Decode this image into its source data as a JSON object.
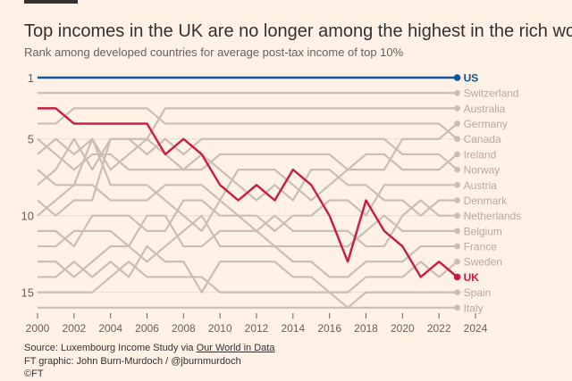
{
  "header": {
    "title": "Top incomes in the UK are no longer among the highest in the rich world",
    "subtitle": "Rank among developed countries for average post-tax income of top 10%"
  },
  "footer": {
    "source_prefix": "Source: Luxembourg Income Study via ",
    "source_link": "Our World in Data",
    "credit": "FT graphic: John Burn-Murdoch / @jburnmurdoch",
    "copyright": "©FT"
  },
  "chart_data": {
    "type": "line",
    "title": "Top incomes in the UK are no longer among the highest in the rich world",
    "subtitle": "Rank among developed countries for average post-tax income of top 10%",
    "x": [
      2000,
      2001,
      2002,
      2003,
      2004,
      2005,
      2006,
      2007,
      2008,
      2009,
      2010,
      2011,
      2012,
      2013,
      2014,
      2015,
      2016,
      2017,
      2018,
      2019,
      2020,
      2021,
      2022,
      2023
    ],
    "xlim": [
      2000,
      2024
    ],
    "xticks": [
      "2000",
      "2002",
      "2004",
      "2006",
      "2008",
      "2010",
      "2012",
      "2014",
      "2016",
      "2018",
      "2020",
      "2022",
      "2024"
    ],
    "ylim": [
      1,
      16
    ],
    "y_reversed": true,
    "yticks": [
      "1",
      "5",
      "10",
      "15"
    ],
    "grid": true,
    "colors": {
      "highlight_us": "#0f5499",
      "highlight_uk": "#cc1a3e",
      "other": "#c9beb3",
      "label_other": "#b5aa9f"
    },
    "series": [
      {
        "name": "US",
        "highlight": "us",
        "values": [
          1,
          1,
          1,
          1,
          1,
          1,
          1,
          1,
          1,
          1,
          1,
          1,
          1,
          1,
          1,
          1,
          1,
          1,
          1,
          1,
          1,
          1,
          1,
          1
        ]
      },
      {
        "name": "Switzerland",
        "values": [
          2,
          2,
          2,
          2,
          2,
          2,
          2,
          2,
          2,
          2,
          2,
          2,
          2,
          2,
          2,
          2,
          2,
          2,
          2,
          2,
          2,
          2,
          2,
          2
        ]
      },
      {
        "name": "Australia",
        "values": [
          6,
          5,
          6,
          5,
          7,
          6,
          5,
          3,
          3,
          3,
          3,
          3,
          3,
          3,
          3,
          3,
          3,
          3,
          3,
          3,
          3,
          3,
          3,
          3
        ]
      },
      {
        "name": "Germany",
        "values": [
          5,
          6,
          7,
          6,
          6,
          7,
          7,
          7,
          7,
          7,
          6,
          6,
          6,
          6,
          6,
          6,
          6,
          7,
          7,
          7,
          5,
          5,
          5,
          4
        ]
      },
      {
        "name": "Canada",
        "values": [
          4,
          4,
          3,
          3,
          3,
          3,
          3,
          4,
          4,
          4,
          4,
          4,
          4,
          4,
          4,
          4,
          4,
          4,
          4,
          4,
          4,
          4,
          4,
          5
        ]
      },
      {
        "name": "Ireland",
        "values": [
          10,
          9,
          8,
          5,
          8,
          8,
          8,
          9,
          10,
          11,
          9,
          7,
          7,
          7,
          8,
          9,
          8,
          7,
          6,
          6,
          7,
          7,
          7,
          6
        ]
      },
      {
        "name": "Norway",
        "values": [
          8,
          7,
          5,
          7,
          5,
          5,
          6,
          5,
          6,
          5,
          5,
          5,
          5,
          5,
          5,
          5,
          5,
          5,
          5,
          5,
          6,
          6,
          6,
          7
        ]
      },
      {
        "name": "Austria",
        "values": [
          7,
          8,
          8,
          8,
          9,
          9,
          9,
          8,
          8,
          8,
          9,
          10,
          10,
          11,
          10,
          10,
          9,
          9,
          10,
          8,
          8,
          8,
          8,
          8
        ]
      },
      {
        "name": "Denmark",
        "values": [
          9,
          10,
          9,
          9,
          5,
          5,
          5,
          6,
          7,
          6,
          7,
          8,
          9,
          8,
          9,
          7,
          7,
          8,
          8,
          9,
          9,
          10,
          9,
          9
        ]
      },
      {
        "name": "Netherlands",
        "values": [
          11,
          11,
          12,
          10,
          10,
          10,
          11,
          11,
          9,
          9,
          10,
          10,
          11,
          10,
          11,
          11,
          11,
          11,
          12,
          12,
          10,
          9,
          10,
          10
        ]
      },
      {
        "name": "Belgium",
        "values": [
          12,
          12,
          11,
          11,
          11,
          12,
          13,
          12,
          11,
          10,
          12,
          12,
          12,
          12,
          12,
          12,
          12,
          12,
          11,
          10,
          11,
          11,
          11,
          11
        ]
      },
      {
        "name": "France",
        "values": [
          13,
          13,
          14,
          13,
          12,
          12,
          10,
          10,
          12,
          12,
          11,
          11,
          11,
          12,
          13,
          13,
          14,
          14,
          13,
          13,
          13,
          12,
          12,
          12
        ]
      },
      {
        "name": "Sweden",
        "values": [
          14,
          14,
          13,
          14,
          13,
          14,
          12,
          13,
          13,
          15,
          13,
          13,
          13,
          13,
          14,
          14,
          15,
          15,
          14,
          14,
          14,
          13,
          14,
          13
        ]
      },
      {
        "name": "UK",
        "highlight": "uk",
        "values": [
          3,
          3,
          4,
          4,
          4,
          4,
          4,
          6,
          5,
          6,
          8,
          9,
          8,
          9,
          7,
          8,
          10,
          13,
          9,
          11,
          12,
          14,
          13,
          14
        ]
      },
      {
        "name": "Spain",
        "values": [
          15,
          15,
          15,
          15,
          14,
          13,
          14,
          14,
          14,
          14,
          15,
          15,
          15,
          15,
          15,
          15,
          15,
          16,
          15,
          15,
          15,
          15,
          15,
          15
        ]
      },
      {
        "name": "Italy",
        "values": [
          16,
          16,
          16,
          16,
          16,
          16,
          16,
          16,
          16,
          16,
          16,
          16,
          16,
          16,
          16,
          16,
          16,
          16,
          16,
          16,
          16,
          16,
          16,
          16
        ]
      }
    ]
  }
}
